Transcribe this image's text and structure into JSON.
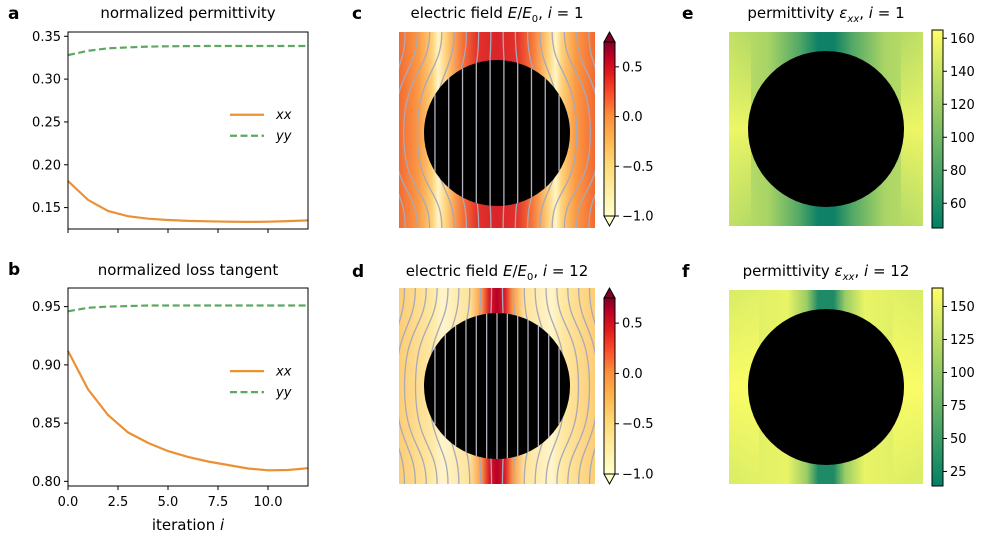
{
  "panels": {
    "a": {
      "letter": "a",
      "title": "normalized permittivity"
    },
    "b": {
      "letter": "b",
      "title": "normalized loss tangent"
    },
    "c": {
      "letter": "c",
      "title_prefix": "electric field ",
      "title_E": "E",
      "title_slash": "/",
      "title_E0": "E",
      "title_E0_sub": "0",
      "title_comma": ", ",
      "title_i": "i",
      "title_eq": " = 1"
    },
    "d": {
      "letter": "d",
      "title_prefix": "electric field ",
      "title_E": "E",
      "title_slash": "/",
      "title_E0": "E",
      "title_E0_sub": "0",
      "title_comma": ", ",
      "title_i": "i",
      "title_eq": " = 12"
    },
    "e": {
      "letter": "e",
      "title_prefix": "permittivity ",
      "title_eps": "ε",
      "title_eps_sub": "xx",
      "title_comma": ", ",
      "title_i": "i",
      "title_eq": " = 1"
    },
    "f": {
      "letter": "f",
      "title_prefix": "permittivity ",
      "title_eps": "ε",
      "title_eps_sub": "xx",
      "title_comma": ", ",
      "title_i": "i",
      "title_eq": " = 12"
    }
  },
  "xaxis": {
    "label_text": "iteration ",
    "label_var": "i"
  },
  "legend": {
    "xx": "xx",
    "yy": "yy"
  },
  "colors": {
    "xx": "#ea9136",
    "yy": "#5fa862"
  },
  "chart_data": [
    {
      "id": "a",
      "type": "line",
      "title": "normalized permittivity",
      "xlim": [
        0,
        12
      ],
      "ylim": [
        0.125,
        0.355
      ],
      "yticks": [
        0.15,
        0.2,
        0.25,
        0.3,
        0.35
      ],
      "ytick_labels": [
        "0.15",
        "0.20",
        "0.25",
        "0.30",
        "0.35"
      ],
      "xticks": [
        0,
        2.5,
        5.0,
        7.5,
        10.0
      ],
      "grid": false,
      "legend": "center-right",
      "x": [
        0,
        1,
        2,
        3,
        4,
        5,
        6,
        7,
        8,
        9,
        10,
        11,
        12
      ],
      "series": [
        {
          "name": "xx",
          "style": "solid",
          "values": [
            0.181,
            0.159,
            0.146,
            0.14,
            0.137,
            0.1355,
            0.1345,
            0.134,
            0.1335,
            0.1333,
            0.1335,
            0.1342,
            0.135
          ]
        },
        {
          "name": "yy",
          "style": "dashed",
          "values": [
            0.328,
            0.333,
            0.336,
            0.337,
            0.338,
            0.3383,
            0.3385,
            0.3386,
            0.3387,
            0.3387,
            0.3387,
            0.3387,
            0.3387
          ]
        }
      ]
    },
    {
      "id": "b",
      "type": "line",
      "title": "normalized loss tangent",
      "xlabel": "iteration i",
      "xlim": [
        0,
        12
      ],
      "ylim": [
        0.796,
        0.966
      ],
      "yticks": [
        0.8,
        0.85,
        0.9,
        0.95
      ],
      "ytick_labels": [
        "0.80",
        "0.85",
        "0.90",
        "0.95"
      ],
      "xticks": [
        0,
        2.5,
        5.0,
        7.5,
        10.0
      ],
      "xtick_labels": [
        "0.0",
        "2.5",
        "5.0",
        "7.5",
        "10.0"
      ],
      "grid": false,
      "legend": "center-right",
      "x": [
        0,
        1,
        2,
        3,
        4,
        5,
        6,
        7,
        8,
        9,
        10,
        11,
        12
      ],
      "series": [
        {
          "name": "xx",
          "style": "solid",
          "values": [
            0.912,
            0.879,
            0.857,
            0.842,
            0.833,
            0.826,
            0.821,
            0.817,
            0.814,
            0.811,
            0.8095,
            0.8097,
            0.8113
          ]
        },
        {
          "name": "yy",
          "style": "dashed",
          "values": [
            0.946,
            0.949,
            0.95,
            0.9505,
            0.951,
            0.951,
            0.951,
            0.951,
            0.951,
            0.951,
            0.951,
            0.951,
            0.951
          ]
        }
      ]
    },
    {
      "id": "c",
      "type": "heatmap",
      "colormap": "YlOrRd",
      "clim": [
        -1.0,
        0.75
      ],
      "colorbar_extend": "both",
      "cbar_ticks": [
        -1.0,
        -0.5,
        0.0,
        0.5
      ],
      "cbar_tick_labels": [
        "−1.0",
        "−0.5",
        "0.0",
        "0.5"
      ],
      "inclusion": "black disk",
      "field_lines": true
    },
    {
      "id": "d",
      "type": "heatmap",
      "colormap": "YlOrRd",
      "clim": [
        -1.0,
        0.75
      ],
      "colorbar_extend": "both",
      "cbar_ticks": [
        -1.0,
        -0.5,
        0.0,
        0.5
      ],
      "cbar_tick_labels": [
        "−1.0",
        "−0.5",
        "0.0",
        "0.5"
      ],
      "inclusion": "black disk",
      "field_lines": true
    },
    {
      "id": "e",
      "type": "heatmap",
      "colormap": "summer",
      "clim": [
        45,
        165
      ],
      "cbar_ticks": [
        60,
        80,
        100,
        120,
        140,
        160
      ],
      "cbar_tick_labels": [
        "60",
        "80",
        "100",
        "120",
        "140",
        "160"
      ],
      "inclusion": "black disk"
    },
    {
      "id": "f",
      "type": "heatmap",
      "colormap": "summer",
      "clim": [
        14,
        164
      ],
      "cbar_ticks": [
        25,
        50,
        75,
        100,
        125,
        150
      ],
      "cbar_tick_labels": [
        "25",
        "50",
        "75",
        "100",
        "125",
        "150"
      ],
      "inclusion": "black disk"
    }
  ]
}
